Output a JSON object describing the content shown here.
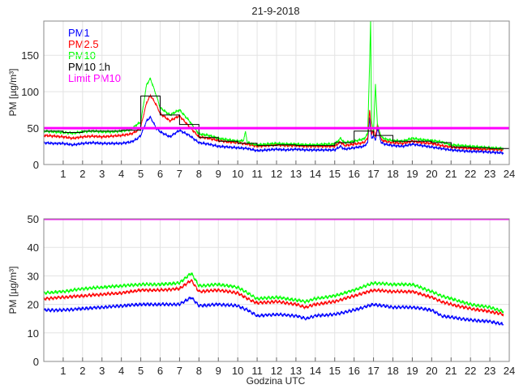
{
  "chart_data": [
    {
      "type": "line",
      "title": "21-9-2018",
      "xlabel": "",
      "ylabel": "PM [µg/m³]",
      "xlim": [
        0,
        24
      ],
      "ylim": [
        0,
        197
      ],
      "xticks": [
        1,
        2,
        3,
        4,
        5,
        6,
        7,
        8,
        9,
        10,
        11,
        12,
        13,
        14,
        15,
        16,
        17,
        18,
        19,
        20,
        21,
        22,
        23,
        24
      ],
      "yticks": [
        0,
        50,
        100,
        150
      ],
      "grid": true,
      "legend_position": "top-left",
      "series": [
        {
          "name": "PM1",
          "color": "#0000ff",
          "x": [
            0,
            0.5,
            1,
            1.5,
            2,
            2.5,
            3,
            3.5,
            4,
            4.5,
            4.8,
            5,
            5.3,
            5.5,
            5.8,
            6,
            6.5,
            7,
            7.5,
            8,
            8.5,
            9,
            9.5,
            10,
            10.5,
            11,
            11.5,
            12,
            12.5,
            13,
            13.5,
            14,
            14.5,
            15,
            15.3,
            15.5,
            16,
            16.5,
            16.7,
            16.8,
            16.9,
            17,
            17.1,
            17.2,
            17.4,
            17.6,
            18,
            18.5,
            19,
            19.5,
            20,
            20.5,
            21,
            21.5,
            22,
            22.5,
            23,
            23.7
          ],
          "y": [
            30,
            29,
            29,
            27,
            29,
            30,
            29,
            29,
            29,
            31,
            35,
            40,
            60,
            65,
            50,
            45,
            38,
            47,
            40,
            30,
            28,
            25,
            24,
            23,
            22,
            19,
            20,
            21,
            20,
            21,
            20,
            20,
            20,
            20,
            25,
            21,
            23,
            25,
            30,
            65,
            35,
            40,
            32,
            50,
            30,
            28,
            26,
            25,
            28,
            26,
            24,
            22,
            20,
            19,
            18,
            18,
            17,
            16
          ]
        },
        {
          "name": "PM2.5",
          "color": "#ff0000",
          "x": [
            0,
            0.5,
            1,
            1.5,
            2,
            2.5,
            3,
            3.5,
            4,
            4.5,
            4.8,
            5,
            5.3,
            5.5,
            5.8,
            6,
            6.5,
            7,
            7.5,
            8,
            8.5,
            9,
            9.5,
            10,
            10.5,
            11,
            11.5,
            12,
            12.5,
            13,
            13.5,
            14,
            14.5,
            15,
            15.3,
            15.5,
            16,
            16.5,
            16.7,
            16.8,
            16.9,
            17,
            17.1,
            17.2,
            17.4,
            17.6,
            18,
            18.5,
            19,
            19.5,
            20,
            20.5,
            21,
            21.5,
            22,
            22.5,
            23,
            23.7
          ],
          "y": [
            40,
            39,
            38,
            36,
            38,
            39,
            38,
            39,
            40,
            42,
            46,
            52,
            85,
            95,
            82,
            70,
            60,
            67,
            52,
            38,
            36,
            33,
            31,
            30,
            28,
            25,
            26,
            27,
            26,
            26,
            25,
            25,
            25,
            25,
            31,
            26,
            28,
            30,
            36,
            75,
            42,
            48,
            38,
            55,
            34,
            32,
            30,
            29,
            32,
            30,
            29,
            26,
            24,
            23,
            22,
            21,
            21,
            20
          ]
        },
        {
          "name": "PM10",
          "color": "#00ff00",
          "x": [
            0,
            0.5,
            1,
            1.5,
            2,
            2.5,
            3,
            3.5,
            4,
            4.5,
            4.8,
            5,
            5.3,
            5.5,
            5.8,
            6,
            6.5,
            7,
            7.5,
            8,
            8.5,
            9,
            9.5,
            10,
            10.3,
            10.4,
            10.5,
            11,
            11.5,
            12,
            12.5,
            13,
            13.5,
            14,
            14.5,
            15,
            15.3,
            15.5,
            16,
            16.5,
            16.7,
            16.8,
            16.85,
            16.9,
            17,
            17.1,
            17.2,
            17.4,
            17.6,
            18,
            18.5,
            19,
            19.5,
            20,
            20.5,
            21,
            21.5,
            22,
            22.5,
            23,
            23.7
          ],
          "y": [
            46,
            45,
            44,
            43,
            45,
            46,
            45,
            45,
            46,
            48,
            55,
            58,
            110,
            118,
            95,
            78,
            68,
            75,
            60,
            42,
            40,
            36,
            34,
            32,
            33,
            45,
            30,
            27,
            28,
            29,
            28,
            28,
            27,
            27,
            28,
            28,
            36,
            30,
            32,
            35,
            42,
            140,
            197,
            60,
            45,
            110,
            55,
            38,
            35,
            33,
            32,
            36,
            34,
            33,
            31,
            27,
            26,
            25,
            24,
            23,
            22
          ]
        },
        {
          "name": "PM10 1h",
          "color": "#000000",
          "step": true,
          "x": [
            0,
            1,
            2,
            3,
            4,
            5,
            6,
            7,
            8,
            9,
            10,
            11,
            12,
            13,
            14,
            15,
            16,
            17,
            18,
            19,
            20,
            21,
            22,
            23
          ],
          "y": [
            46,
            44,
            46,
            46,
            47,
            94,
            68,
            55,
            37,
            32,
            29,
            26,
            27,
            26,
            26,
            30,
            46,
            40,
            32,
            32,
            30,
            24,
            23,
            22
          ]
        },
        {
          "name": "Limit PM10",
          "color": "#ff00ff",
          "x": [
            0,
            24
          ],
          "y": [
            50,
            50
          ]
        }
      ]
    },
    {
      "type": "line",
      "title": "",
      "xlabel": "Godzina UTC",
      "ylabel": "PM [µg/m³]",
      "xlim": [
        0,
        24
      ],
      "ylim": [
        0,
        50
      ],
      "xticks": [
        1,
        2,
        3,
        4,
        5,
        6,
        7,
        8,
        9,
        10,
        11,
        12,
        13,
        14,
        15,
        16,
        17,
        18,
        19,
        20,
        21,
        22,
        23,
        24
      ],
      "yticks": [
        0,
        10,
        20,
        30,
        40,
        50
      ],
      "grid": true,
      "series": [
        {
          "name": "PM1",
          "color": "#0000ff",
          "x": [
            0,
            1,
            2,
            3,
            4,
            5,
            6,
            7,
            7.6,
            8,
            9,
            10,
            10.5,
            11,
            12,
            13,
            13.5,
            14,
            15,
            16,
            17,
            18,
            19,
            20,
            20.5,
            21,
            22,
            23,
            23.7
          ],
          "y": [
            18,
            18,
            18.5,
            19,
            19.5,
            20,
            20,
            20,
            22.5,
            19.5,
            20,
            19.5,
            18,
            16,
            16.5,
            16,
            15,
            16,
            16.5,
            18,
            20,
            19,
            19,
            18,
            16,
            15.5,
            14.5,
            14,
            13
          ]
        },
        {
          "name": "PM2.5",
          "color": "#ff0000",
          "x": [
            0,
            1,
            2,
            3,
            4,
            5,
            6,
            7,
            7.6,
            8,
            9,
            10,
            10.5,
            11,
            12,
            13,
            13.5,
            14,
            15,
            16,
            17,
            18,
            19,
            20,
            20.5,
            21,
            22,
            23,
            23.7
          ],
          "y": [
            22,
            22.5,
            23,
            23.5,
            24,
            25,
            25,
            25.5,
            28.5,
            24.5,
            25,
            24,
            22,
            20.5,
            21,
            20,
            19,
            20,
            21,
            23,
            25,
            24.5,
            24.5,
            22.5,
            21,
            20,
            18.5,
            17.5,
            16.5
          ]
        },
        {
          "name": "PM10",
          "color": "#00ff00",
          "x": [
            0,
            1,
            2,
            3,
            4,
            5,
            6,
            7,
            7.6,
            8,
            9,
            10,
            10.5,
            11,
            12,
            13,
            13.5,
            14,
            15,
            16,
            17,
            18,
            19,
            20,
            20.5,
            21,
            22,
            23,
            23.7
          ],
          "y": [
            24,
            24.5,
            25.5,
            26,
            26.5,
            27,
            27,
            27.5,
            31,
            26.5,
            27,
            26,
            24,
            22,
            22.5,
            21.5,
            21,
            22,
            23,
            25,
            27.5,
            27,
            27,
            24.5,
            23,
            22,
            20,
            19,
            17.5
          ]
        },
        {
          "name": "Limit PM10",
          "color": "#ff00ff",
          "x": [
            0,
            24
          ],
          "y": [
            50,
            50
          ]
        }
      ]
    }
  ]
}
